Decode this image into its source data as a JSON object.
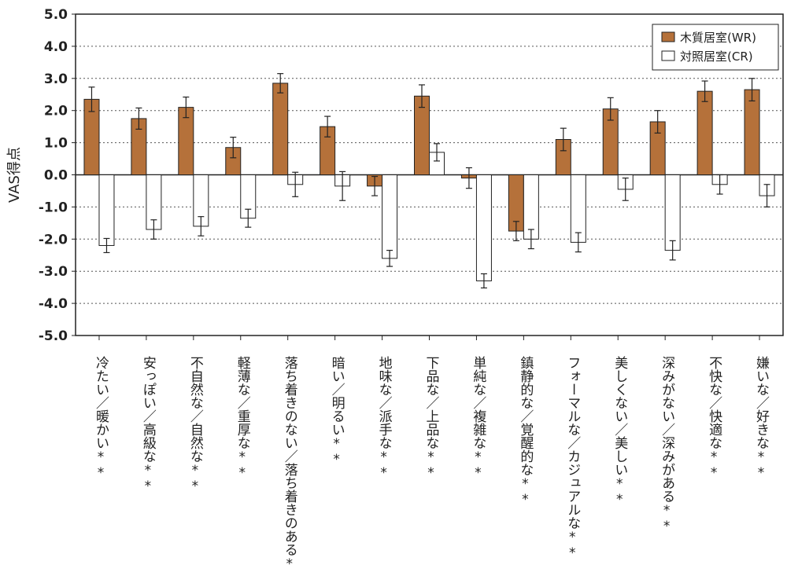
{
  "chart_data": {
    "type": "bar",
    "title": "",
    "xlabel": "",
    "ylabel": "VAS得点",
    "ylim": [
      -5.0,
      5.0
    ],
    "yticks": [
      "5.0",
      "4.0",
      "3.0",
      "2.0",
      "1.0",
      "0.0",
      "-1.0",
      "-2.0",
      "-3.0",
      "-4.0",
      "-5.0"
    ],
    "grid": "horizontal dotted",
    "legend_position": "top-right",
    "categories": [
      "冷たい／暖かい**",
      "安っぽい／高級な**",
      "不自然な／自然な**",
      "軽薄な／重厚な**",
      "落ち着きのない／落ち着きのある**",
      "暗い／明るい**",
      "地味な／派手な**",
      "下品な／上品な**",
      "単純な／複雑な**",
      "鎮静的な／覚醒的な**",
      "フォーマルな／カジュアルな**",
      "美しくない／美しい**",
      "深みがない／深みがある**",
      "不快な／快適な**",
      "嫌いな／好きな**"
    ],
    "series": [
      {
        "name": "木質居室(WR)",
        "color": "#b5713a",
        "values": [
          2.35,
          1.75,
          2.1,
          0.85,
          2.85,
          1.5,
          -0.35,
          2.45,
          -0.1,
          -1.75,
          1.1,
          2.05,
          1.65,
          2.6,
          2.65
        ],
        "errors": [
          0.38,
          0.33,
          0.32,
          0.32,
          0.3,
          0.32,
          0.3,
          0.35,
          0.32,
          0.3,
          0.35,
          0.35,
          0.35,
          0.32,
          0.35
        ]
      },
      {
        "name": "対照居室(CR)",
        "color": "#ffffff",
        "values": [
          -2.2,
          -1.7,
          -1.6,
          -1.35,
          -0.3,
          -0.35,
          -2.6,
          0.7,
          -3.3,
          -2.0,
          -2.1,
          -0.45,
          -2.35,
          -0.3,
          -0.65
        ]
      }
    ],
    "series_errors_cr": [
      0.22,
      0.3,
      0.3,
      0.28,
      0.38,
      0.45,
      0.25,
      0.27,
      0.22,
      0.3,
      0.3,
      0.35,
      0.3,
      0.3,
      0.35
    ]
  }
}
